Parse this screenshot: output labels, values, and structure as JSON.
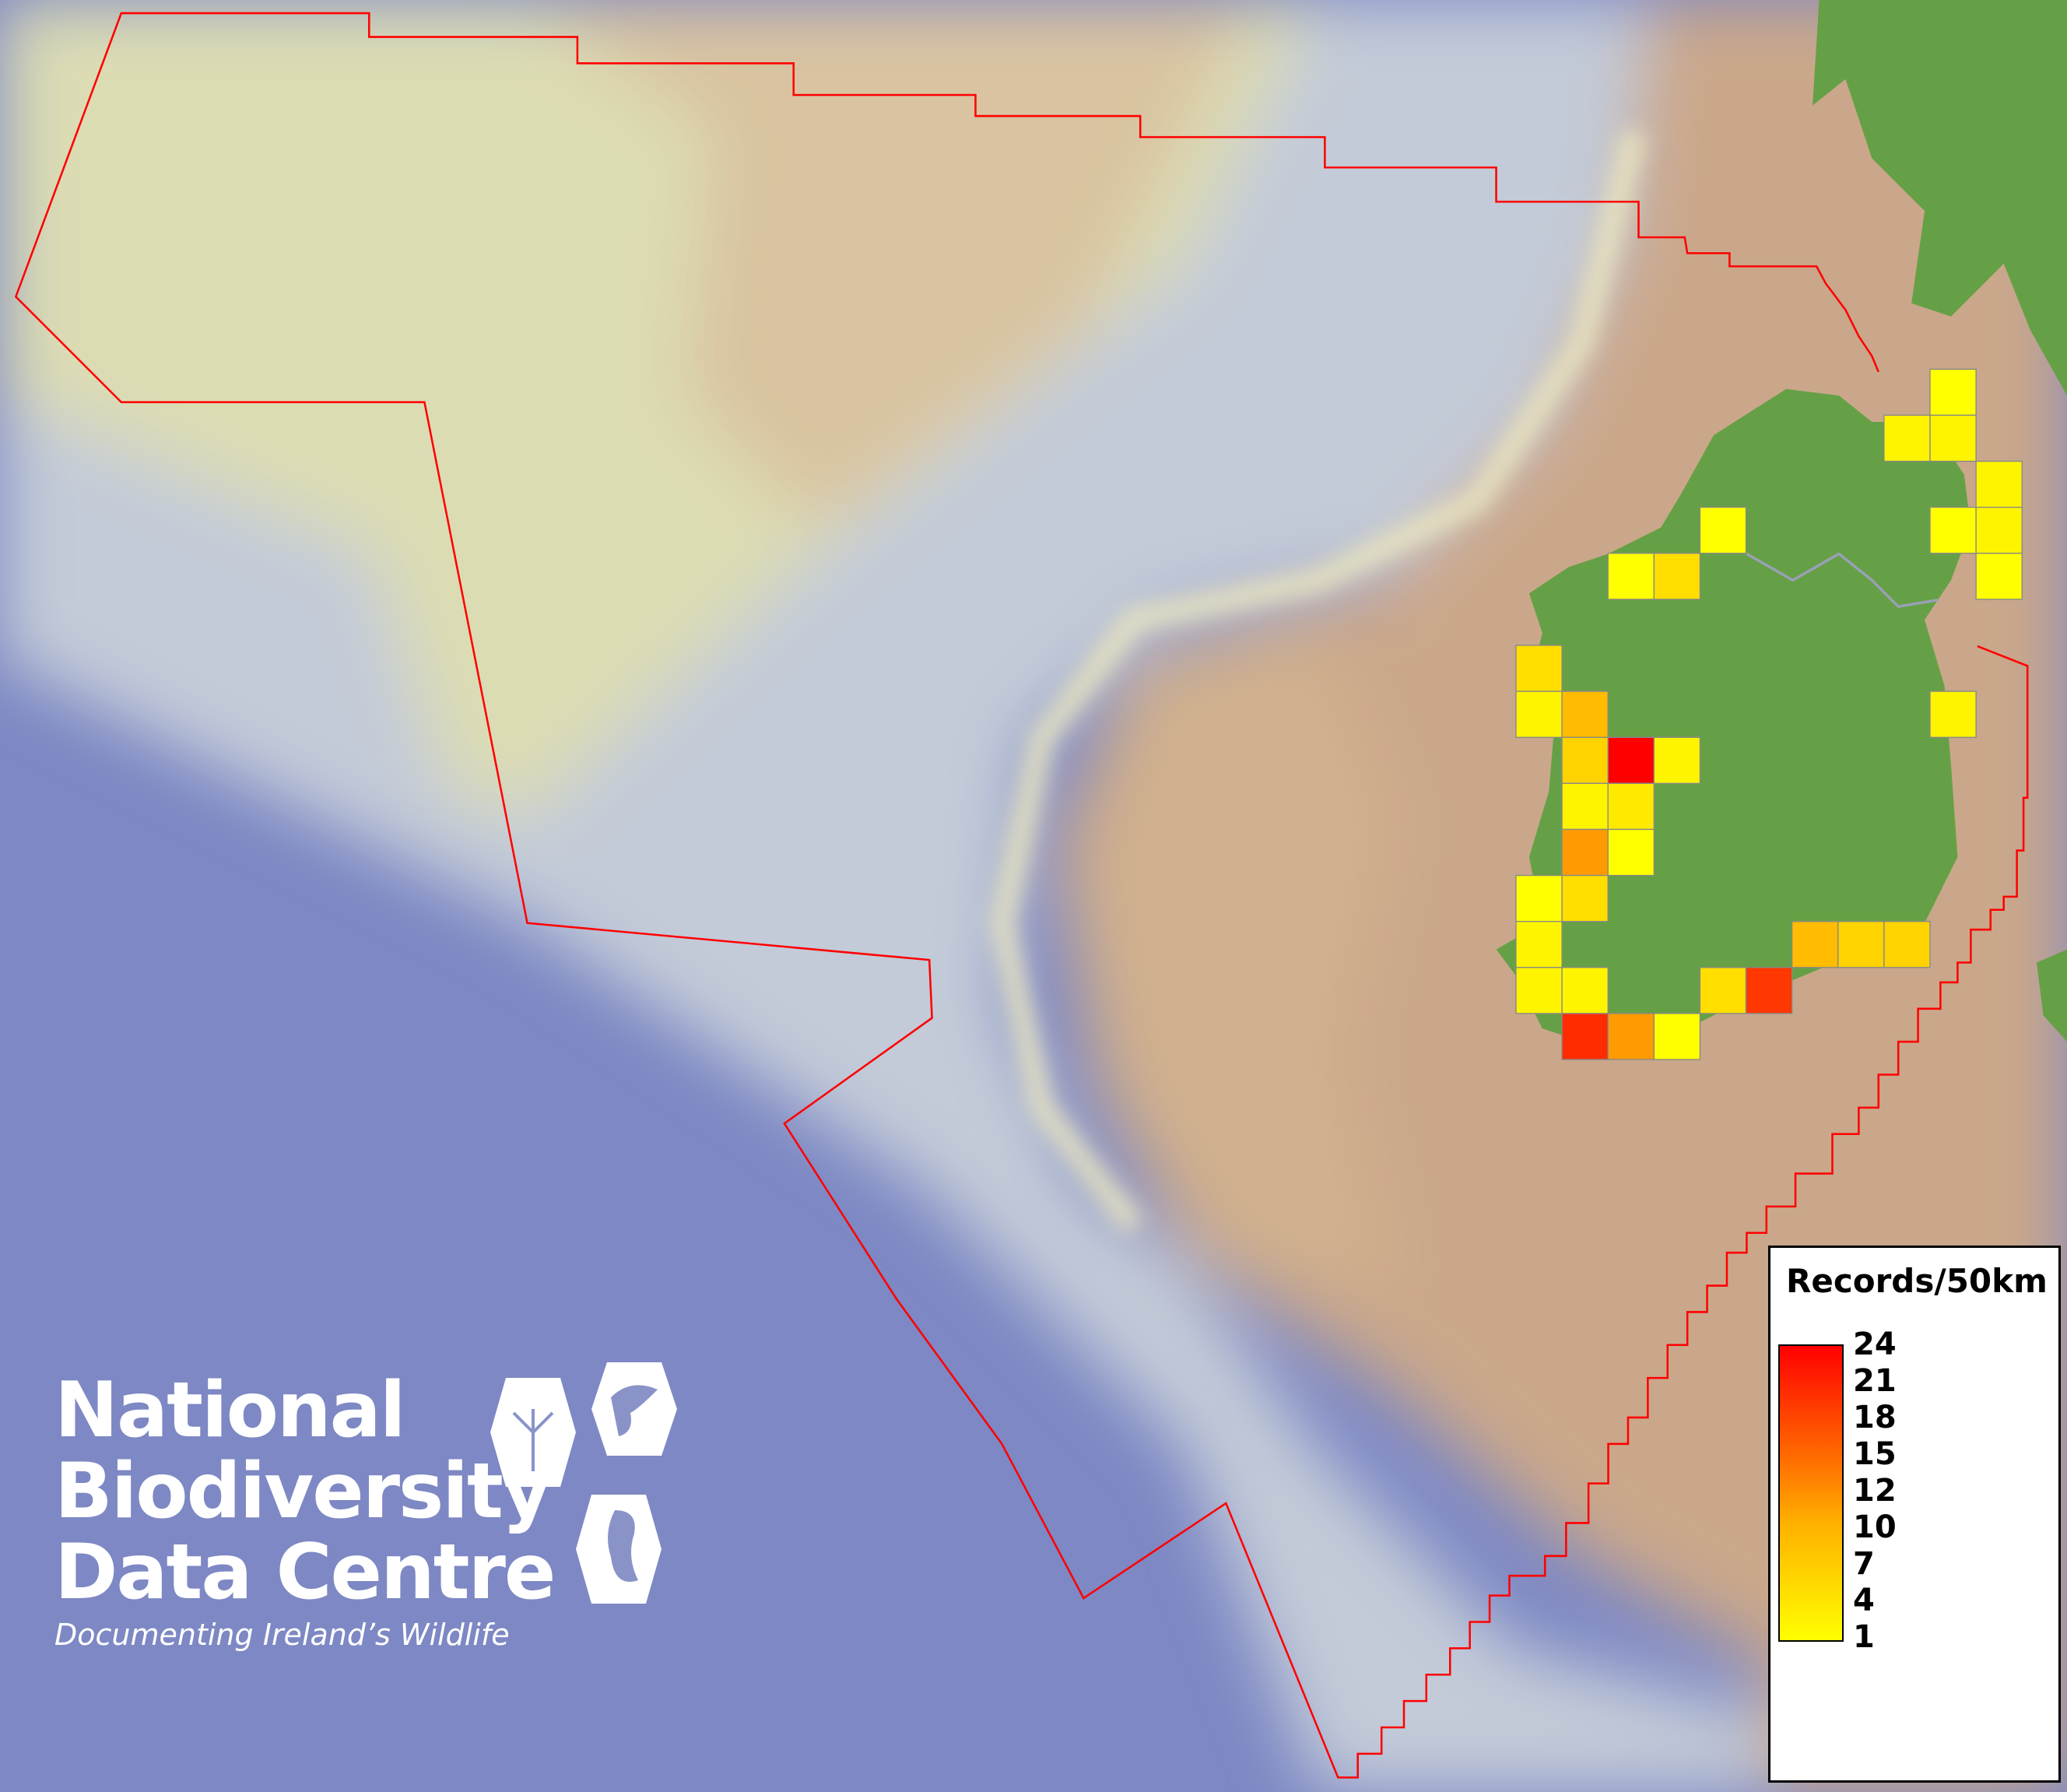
{
  "logo": {
    "lines": [
      "National",
      "Biodiversity",
      "Data Centre"
    ],
    "tagline": "Documenting Ireland’s Wildlife",
    "icons": [
      "tree-icon",
      "butterfly-icon",
      "seahorse-icon"
    ]
  },
  "legend": {
    "title": "Records/50km",
    "ticks": [
      "24",
      "21",
      "18",
      "15",
      "12",
      "10",
      "7",
      "4",
      "1"
    ],
    "color_low": "#ffff00",
    "color_high": "#ff0000"
  },
  "colors": {
    "boundary": "#ff0000",
    "land": "#66a046",
    "shelf": "#c9a88c",
    "ocean": "#7d88c4",
    "grid_border": "#888888"
  },
  "grid_cells": [
    {
      "row": 0,
      "col": 9,
      "value": 1
    },
    {
      "row": 1,
      "col": 8,
      "value": 2
    },
    {
      "row": 1,
      "col": 9,
      "value": 2
    },
    {
      "row": 2,
      "col": 10,
      "value": 2
    },
    {
      "row": 3,
      "col": 4,
      "value": 1
    },
    {
      "row": 3,
      "col": 9,
      "value": 1
    },
    {
      "row": 3,
      "col": 10,
      "value": 2
    },
    {
      "row": 4,
      "col": 2,
      "value": 1
    },
    {
      "row": 4,
      "col": 3,
      "value": 4
    },
    {
      "row": 4,
      "col": 10,
      "value": 1
    },
    {
      "row": 6,
      "col": 0,
      "value": 4
    },
    {
      "row": 7,
      "col": 0,
      "value": 2
    },
    {
      "row": 7,
      "col": 1,
      "value": 7
    },
    {
      "row": 7,
      "col": 9,
      "value": 2
    },
    {
      "row": 8,
      "col": 1,
      "value": 5
    },
    {
      "row": 8,
      "col": 2,
      "value": 24
    },
    {
      "row": 8,
      "col": 3,
      "value": 2
    },
    {
      "row": 9,
      "col": 1,
      "value": 2
    },
    {
      "row": 9,
      "col": 2,
      "value": 3
    },
    {
      "row": 10,
      "col": 1,
      "value": 10
    },
    {
      "row": 10,
      "col": 2,
      "value": 1
    },
    {
      "row": 11,
      "col": 0,
      "value": 1
    },
    {
      "row": 11,
      "col": 1,
      "value": 4
    },
    {
      "row": 12,
      "col": 0,
      "value": 2
    },
    {
      "row": 12,
      "col": 6,
      "value": 7
    },
    {
      "row": 12,
      "col": 7,
      "value": 5
    },
    {
      "row": 12,
      "col": 8,
      "value": 5
    },
    {
      "row": 13,
      "col": 0,
      "value": 2
    },
    {
      "row": 13,
      "col": 1,
      "value": 2
    },
    {
      "row": 13,
      "col": 4,
      "value": 4
    },
    {
      "row": 13,
      "col": 5,
      "value": 19
    },
    {
      "row": 14,
      "col": 1,
      "value": 20
    },
    {
      "row": 14,
      "col": 2,
      "value": 10
    },
    {
      "row": 14,
      "col": 3,
      "value": 1
    }
  ]
}
